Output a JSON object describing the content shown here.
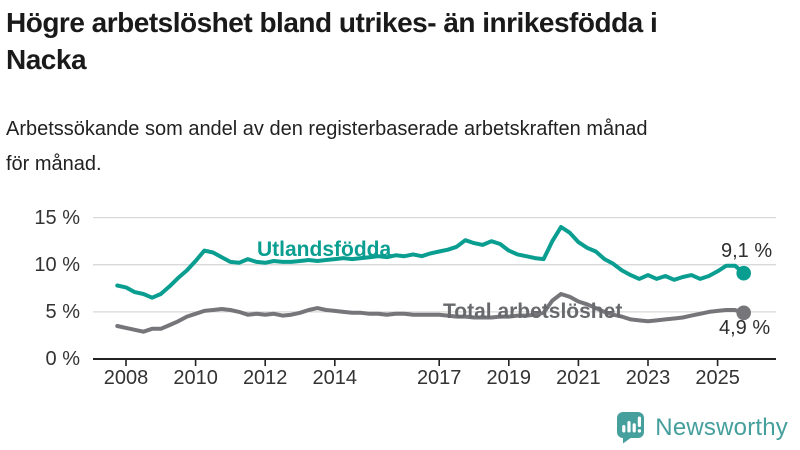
{
  "header": {
    "title": "Högre arbetslöshet bland utrikes- än inrikesfödda i Nacka",
    "title_lines": [
      "Högre arbetslöshet bland utrikes- än inrikesfödda i",
      "Nacka"
    ],
    "subtitle": "Arbetssökande som andel av den registerbaserade arbetskraften månad för månad.",
    "subtitle_lines": [
      "Arbetssökande som andel av den registerbaserade arbetskraften månad",
      "för månad."
    ]
  },
  "branding": {
    "logo_text": "Newsworthy",
    "logo_icon": "bar-chart-speech-bubble-icon",
    "brand_color": "#459f9c"
  },
  "colors": {
    "foreign_born_line": "#0a9e91",
    "total_line": "#76767a",
    "total_label": "#68696d",
    "grid": "#d9d9d9",
    "axis": "#222222",
    "axis_text": "#333333",
    "value_label_text": "#2e2e2e",
    "title_text": "#1a1a1a"
  },
  "chart_data": {
    "type": "line",
    "title": "Högre arbetslöshet bland utrikes- än inrikesfödda i Nacka",
    "xlabel": "",
    "ylabel": "",
    "y_unit": "%",
    "ylim": [
      0,
      15
    ],
    "xlim": [
      2007.05,
      2026.65
    ],
    "grid": "horizontal",
    "legend_position": "labels-on-lines",
    "y_ticks": [
      0,
      5,
      10,
      15
    ],
    "y_tick_labels": [
      "0 %",
      "5 %",
      "10 %",
      "15 %"
    ],
    "x_ticks": [
      2008,
      2010,
      2012,
      2014,
      2017,
      2019,
      2021,
      2023,
      2025
    ],
    "x_tick_labels": [
      "2008",
      "2010",
      "2012",
      "2014",
      "2017",
      "2019",
      "2021",
      "2023",
      "2025"
    ],
    "x": [
      2007.75,
      2008,
      2008.25,
      2008.5,
      2008.75,
      2009,
      2009.25,
      2009.5,
      2009.75,
      2010,
      2010.25,
      2010.5,
      2010.75,
      2011,
      2011.25,
      2011.5,
      2011.75,
      2012,
      2012.25,
      2012.5,
      2012.75,
      2013,
      2013.25,
      2013.5,
      2013.75,
      2014,
      2014.25,
      2014.5,
      2014.75,
      2015,
      2015.25,
      2015.5,
      2015.75,
      2016,
      2016.25,
      2016.5,
      2016.75,
      2017,
      2017.25,
      2017.5,
      2017.75,
      2018,
      2018.25,
      2018.5,
      2018.75,
      2019,
      2019.25,
      2019.5,
      2019.75,
      2020,
      2020.25,
      2020.5,
      2020.75,
      2021,
      2021.25,
      2021.5,
      2021.75,
      2022,
      2022.25,
      2022.5,
      2022.75,
      2023,
      2023.25,
      2023.5,
      2023.75,
      2024,
      2024.25,
      2024.5,
      2024.75,
      2025,
      2025.25,
      2025.5,
      2025.75
    ],
    "series": [
      {
        "name": "Utlandsfödda",
        "label": "Utlandsfödda",
        "color": "#0a9e91",
        "end_label": "9,1 %",
        "end_value": 9.1,
        "values": [
          7.8,
          7.6,
          7.1,
          6.9,
          6.5,
          6.9,
          7.7,
          8.6,
          9.4,
          10.4,
          11.5,
          11.3,
          10.8,
          10.3,
          10.2,
          10.6,
          10.3,
          10.2,
          10.4,
          10.3,
          10.3,
          10.4,
          10.5,
          10.4,
          10.5,
          10.6,
          10.7,
          10.6,
          10.7,
          10.8,
          10.9,
          10.8,
          11.0,
          10.9,
          11.1,
          10.9,
          11.2,
          11.4,
          11.6,
          11.9,
          12.6,
          12.3,
          12.1,
          12.5,
          12.2,
          11.5,
          11.1,
          10.9,
          10.7,
          10.6,
          12.5,
          14.0,
          13.4,
          12.4,
          11.8,
          11.4,
          10.6,
          10.1,
          9.4,
          8.9,
          8.5,
          8.9,
          8.5,
          8.8,
          8.4,
          8.7,
          8.9,
          8.5,
          8.8,
          9.3,
          9.9,
          9.9,
          9.1
        ]
      },
      {
        "name": "Total arbetslöshet",
        "label": "Total arbetslöshet",
        "color": "#76767a",
        "end_label": "4,9 %",
        "end_value": 4.9,
        "values": [
          3.5,
          3.3,
          3.1,
          2.9,
          3.2,
          3.2,
          3.6,
          4.0,
          4.5,
          4.8,
          5.1,
          5.2,
          5.3,
          5.2,
          5.0,
          4.7,
          4.8,
          4.7,
          4.8,
          4.6,
          4.7,
          4.9,
          5.2,
          5.4,
          5.2,
          5.1,
          5.0,
          4.9,
          4.9,
          4.8,
          4.8,
          4.7,
          4.8,
          4.8,
          4.7,
          4.7,
          4.7,
          4.7,
          4.6,
          4.5,
          4.5,
          4.4,
          4.4,
          4.4,
          4.5,
          4.5,
          4.6,
          4.6,
          4.7,
          4.9,
          6.2,
          6.9,
          6.6,
          6.1,
          5.8,
          5.4,
          5.0,
          4.7,
          4.5,
          4.2,
          4.1,
          4.0,
          4.1,
          4.2,
          4.3,
          4.4,
          4.6,
          4.8,
          5.0,
          5.1,
          5.2,
          5.2,
          4.9
        ]
      }
    ]
  }
}
